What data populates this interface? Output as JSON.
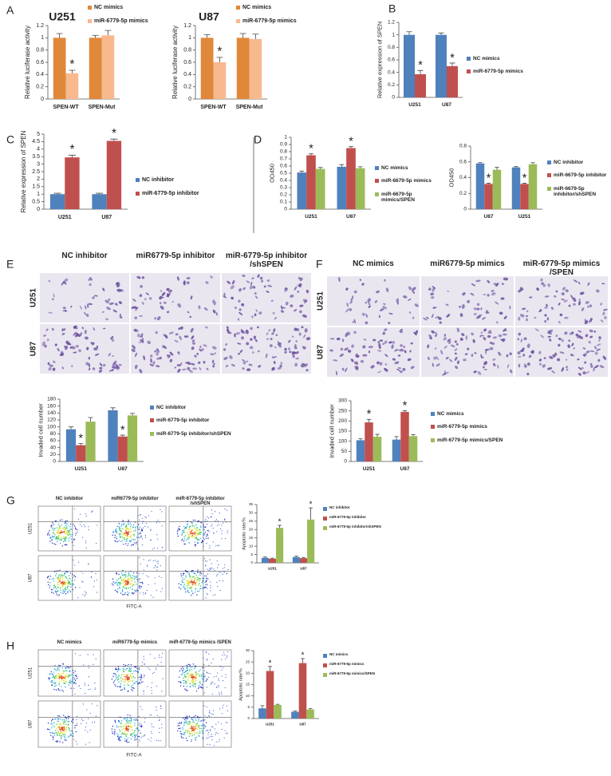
{
  "panel_labels": [
    "A",
    "B",
    "C",
    "D",
    "E",
    "F",
    "G",
    "H"
  ],
  "chart_data": [
    {
      "type": "bar",
      "title": "U251",
      "ylabel": "Relative luciferase activity",
      "categories": [
        "SPEN-WT",
        "SPEN-Mut"
      ],
      "series": [
        {
          "name": "NC mimics",
          "color": "#e0883a",
          "values": [
            1,
            1
          ],
          "errors": [
            0.07,
            0.04
          ],
          "significance": [
            null,
            null
          ]
        },
        {
          "name": "miR-6779-5p mimics",
          "color": "#f8b98f",
          "values": [
            0.42,
            1.04
          ],
          "errors": [
            0.05,
            0.08
          ],
          "significance": [
            "*",
            null
          ]
        }
      ],
      "ylim": [
        0,
        1.2
      ],
      "yticks": [
        0,
        0.2,
        0.4,
        0.6,
        0.8,
        1,
        1.2
      ]
    },
    {
      "type": "bar",
      "title": "U87",
      "ylabel": "Relative luciferase activity",
      "categories": [
        "SPEN-WT",
        "SPEN-Mut"
      ],
      "series": [
        {
          "name": "NC mimics",
          "color": "#e0883a",
          "values": [
            1,
            1
          ],
          "errors": [
            0.05,
            0.07
          ],
          "significance": [
            null,
            null
          ]
        },
        {
          "name": "miR-6779-5p mimics",
          "color": "#f8b98f",
          "values": [
            0.6,
            0.98
          ],
          "errors": [
            0.08,
            0.08
          ],
          "significance": [
            "*",
            null
          ]
        }
      ],
      "ylim": [
        0,
        1.2
      ],
      "yticks": [
        0,
        0.2,
        0.4,
        0.6,
        0.8,
        1,
        1.2
      ]
    },
    {
      "type": "bar",
      "ylabel": "Relative expression of SPEN",
      "categories": [
        "U251",
        "U87"
      ],
      "series": [
        {
          "name": "NC mimics",
          "color": "#4f81bd",
          "values": [
            1,
            1
          ],
          "errors": [
            0.05,
            0.03
          ],
          "significance": [
            null,
            null
          ]
        },
        {
          "name": "miR-6779-5p mimics",
          "color": "#c0504d",
          "values": [
            0.37,
            0.5
          ],
          "errors": [
            0.06,
            0.05
          ],
          "significance": [
            "*",
            "*"
          ]
        }
      ],
      "ylim": [
        0,
        1.2
      ],
      "yticks": [
        0,
        0.2,
        0.4,
        0.6,
        0.8,
        1,
        1.2
      ]
    },
    {
      "type": "bar",
      "ylabel": "Relative expression of SPEN",
      "categories": [
        "U251",
        "U87"
      ],
      "series": [
        {
          "name": "NC inhibitor",
          "color": "#4f81bd",
          "values": [
            1,
            1
          ],
          "errors": [
            0.06,
            0.06
          ],
          "significance": [
            null,
            null
          ]
        },
        {
          "name": "miR-6779-5p inhibitor",
          "color": "#c0504d",
          "values": [
            3.45,
            4.55
          ],
          "errors": [
            0.15,
            0.12
          ],
          "significance": [
            "*",
            "*"
          ]
        }
      ],
      "ylim": [
        0,
        5
      ],
      "yticks": [
        0,
        0.5,
        1,
        1.5,
        2,
        2.5,
        3,
        3.5,
        4,
        4.5,
        5
      ]
    },
    {
      "type": "bar",
      "ylabel": "OD450",
      "categories": [
        "U251",
        "U87"
      ],
      "series": [
        {
          "name": "NC mimics",
          "color": "#4f81bd",
          "values": [
            0.51,
            0.59
          ],
          "errors": [
            0.02,
            0.03
          ],
          "significance": [
            null,
            null
          ]
        },
        {
          "name": "miR-6679-5p mimics",
          "color": "#c0504d",
          "values": [
            0.75,
            0.85
          ],
          "errors": [
            0.02,
            0.02
          ],
          "significance": [
            "*",
            "*"
          ]
        },
        {
          "name": "miR-6679-5p mimics/SPEN",
          "color": "#9bbb59",
          "values": [
            0.56,
            0.57
          ],
          "errors": [
            0.02,
            0.02
          ],
          "significance": [
            null,
            null
          ]
        }
      ],
      "ylim": [
        0,
        1
      ],
      "yticks": [
        0,
        0.1,
        0.2,
        0.3,
        0.4,
        0.5,
        0.6,
        0.7,
        0.8,
        0.9,
        1
      ]
    },
    {
      "type": "bar",
      "ylabel": "OD450",
      "categories": [
        "U87",
        "U251"
      ],
      "series": [
        {
          "name": "NC inhibitor",
          "color": "#4f81bd",
          "values": [
            0.58,
            0.53
          ],
          "errors": [
            0.01,
            0.01
          ],
          "significance": [
            null,
            null
          ]
        },
        {
          "name": "miR-6679-5p inhibitor",
          "color": "#c0504d",
          "values": [
            0.32,
            0.32
          ],
          "errors": [
            0.01,
            0.01
          ],
          "significance": [
            "*",
            "*"
          ]
        },
        {
          "name": "miR-6679-5p inhibitor/shSPEN",
          "color": "#9bbb59",
          "values": [
            0.5,
            0.57
          ],
          "errors": [
            0.03,
            0.02
          ],
          "significance": [
            null,
            null
          ]
        }
      ],
      "ylim": [
        0,
        0.8
      ],
      "yticks": [
        0,
        0.2,
        0.4,
        0.6,
        0.8
      ]
    },
    {
      "type": "bar",
      "ylabel": "Invaded cell number",
      "categories": [
        "U251",
        "U87"
      ],
      "series": [
        {
          "name": "NC inhibitor",
          "color": "#4f81bd",
          "values": [
            93,
            148
          ],
          "errors": [
            7,
            7
          ],
          "significance": [
            null,
            null
          ]
        },
        {
          "name": "miR-6779-5p inhibitor",
          "color": "#c0504d",
          "values": [
            47,
            72
          ],
          "errors": [
            5,
            4
          ],
          "significance": [
            "*",
            "*"
          ]
        },
        {
          "name": "miR-6779-5p inhibitor/shSPEN",
          "color": "#9bbb59",
          "values": [
            115,
            133
          ],
          "errors": [
            12,
            6
          ],
          "significance": [
            null,
            null
          ]
        }
      ],
      "ylim": [
        0,
        180
      ],
      "yticks": [
        0,
        20,
        40,
        60,
        80,
        100,
        120,
        140,
        160,
        180
      ]
    },
    {
      "type": "bar",
      "ylabel": "Invaded cell number",
      "categories": [
        "U251",
        "U87"
      ],
      "series": [
        {
          "name": "NC mimics",
          "color": "#4f81bd",
          "values": [
            105,
            108
          ],
          "errors": [
            7,
            15
          ],
          "significance": [
            null,
            null
          ]
        },
        {
          "name": "miR-6779-5p mimics",
          "color": "#c0504d",
          "values": [
            193,
            245
          ],
          "errors": [
            15,
            6
          ],
          "significance": [
            "*",
            "*"
          ]
        },
        {
          "name": "miR-6779-5p mimics/SPEN",
          "color": "#9bbb59",
          "values": [
            122,
            125
          ],
          "errors": [
            12,
            8
          ],
          "significance": [
            null,
            null
          ]
        }
      ],
      "ylim": [
        0,
        300
      ],
      "yticks": [
        0,
        50,
        100,
        150,
        200,
        250,
        300
      ]
    },
    {
      "type": "bar",
      "ylabel": "Apoptotic rate/%",
      "categories": [
        "U251",
        "U87"
      ],
      "series": [
        {
          "name": "NC inhibitor",
          "color": "#4f81bd",
          "values": [
            3,
            3.5
          ],
          "errors": [
            0.5,
            0.5
          ],
          "significance": [
            null,
            null
          ]
        },
        {
          "name": "miR-6779-5p inhibitor",
          "color": "#c0504d",
          "values": [
            2.5,
            2.8
          ],
          "errors": [
            0.3,
            0.4
          ],
          "significance": [
            null,
            null
          ]
        },
        {
          "name": "miR-6779-5p inhibitor/shSPEN",
          "color": "#9bbb59",
          "values": [
            21,
            26
          ],
          "errors": [
            1.5,
            7
          ],
          "significance": [
            "*",
            "*"
          ]
        }
      ],
      "ylim": [
        0,
        35
      ],
      "yticks": [
        0,
        5,
        10,
        15,
        20,
        25,
        30,
        35
      ]
    },
    {
      "type": "bar",
      "ylabel": "Apoptotic rate/%",
      "categories": [
        "U251",
        "U87"
      ],
      "series": [
        {
          "name": "NC mimics",
          "color": "#4f81bd",
          "values": [
            4.5,
            3
          ],
          "errors": [
            1.2,
            0.3
          ],
          "significance": [
            null,
            null
          ]
        },
        {
          "name": "miR-6779-5p mimics",
          "color": "#c0504d",
          "values": [
            21,
            24.5
          ],
          "errors": [
            2,
            2
          ],
          "significance": [
            "*",
            "*"
          ]
        },
        {
          "name": "miR-6779-5p mimics/SPEN",
          "color": "#9bbb59",
          "values": [
            6,
            4
          ],
          "errors": [
            0.3,
            0.4
          ],
          "significance": [
            null,
            null
          ]
        }
      ],
      "ylim": [
        0,
        30
      ],
      "yticks": [
        0,
        5,
        10,
        15,
        20,
        25,
        30
      ]
    }
  ],
  "micrographs": [
    {
      "columns": [
        "NC inhibitor",
        "miR6779-5p inhibitor",
        "miR-6779-5p inhibitor /shSPEN"
      ],
      "rows": [
        "U251",
        "U87"
      ]
    },
    {
      "columns": [
        "NC mimics",
        "miR6779-5p mimics",
        "miR-6779-5p mimics /SPEN"
      ],
      "rows": [
        "U251",
        "U87"
      ]
    }
  ],
  "flow_cytometry": [
    {
      "columns": [
        "NC inhibitor",
        "miR6779-5p inhibitor",
        "miR-6779-5p inhibitor /shSPEN"
      ],
      "rows": [
        "U251",
        "U87"
      ],
      "xlabel": "FITC-A"
    },
    {
      "columns": [
        "NC mimics",
        "miR6779-5p mimics",
        "miR-6779-5p mimics /SPEN"
      ],
      "rows": [
        "U251",
        "U87"
      ],
      "xlabel": "FITC-A"
    }
  ]
}
